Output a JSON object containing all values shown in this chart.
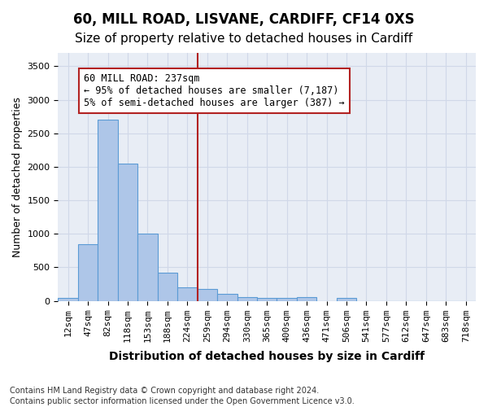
{
  "title1": "60, MILL ROAD, LISVANE, CARDIFF, CF14 0XS",
  "title2": "Size of property relative to detached houses in Cardiff",
  "xlabel": "Distribution of detached houses by size in Cardiff",
  "ylabel": "Number of detached properties",
  "footnote1": "Contains HM Land Registry data © Crown copyright and database right 2024.",
  "footnote2": "Contains public sector information licensed under the Open Government Licence v3.0.",
  "bin_labels": [
    "12sqm",
    "47sqm",
    "82sqm",
    "118sqm",
    "153sqm",
    "188sqm",
    "224sqm",
    "259sqm",
    "294sqm",
    "330sqm",
    "365sqm",
    "400sqm",
    "436sqm",
    "471sqm",
    "506sqm",
    "541sqm",
    "577sqm",
    "612sqm",
    "647sqm",
    "683sqm",
    "718sqm"
  ],
  "bar_values": [
    50,
    850,
    2700,
    2050,
    1000,
    420,
    200,
    180,
    100,
    60,
    50,
    50,
    60,
    0,
    50,
    0,
    0,
    0,
    0,
    0,
    0
  ],
  "bar_color": "#aec6e8",
  "bar_edge_color": "#5b9bd5",
  "vline_x": 6.5,
  "vline_color": "#b22222",
  "annotation_lines": [
    "60 MILL ROAD: 237sqm",
    "← 95% of detached houses are smaller (7,187)",
    "5% of semi-detached houses are larger (387) →"
  ],
  "annotation_box_color": "#b22222",
  "annotation_fill_color": "#ffffff",
  "ylim": [
    0,
    3700
  ],
  "xlim": [
    -0.5,
    20.5
  ],
  "grid_color": "#d0d8e8",
  "background_color": "#e8edf5",
  "title1_fontsize": 12,
  "title2_fontsize": 11,
  "xlabel_fontsize": 10,
  "ylabel_fontsize": 9,
  "tick_fontsize": 8,
  "annotation_fontsize": 8.5,
  "footnote_fontsize": 7
}
